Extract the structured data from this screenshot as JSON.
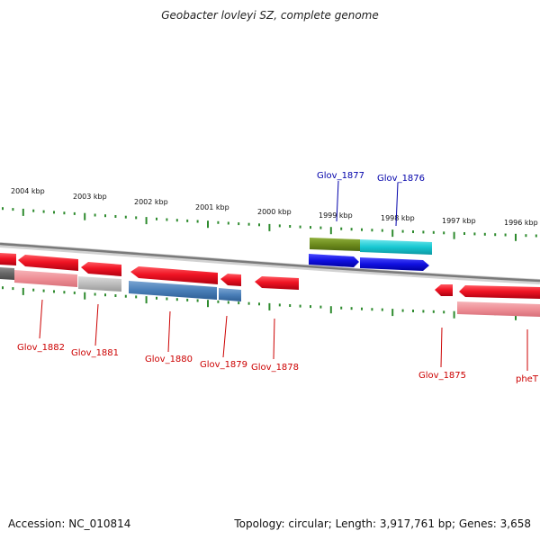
{
  "title": "Geobacter lovleyi SZ, complete genome",
  "footer": {
    "accession": "Accession: NC_010814",
    "topology": "Topology: circular; Length: 3,917,761 bp; Genes: 3,658"
  },
  "colors": {
    "tick_green": "#2e8b2e",
    "backbone": "#8a8a8a",
    "gene_red": "#e8101e",
    "gene_pink": "#ee8f96",
    "gene_grey": "#b8b8b8",
    "gene_steelblue": "#4a7fb8",
    "gene_blue": "#1010e0",
    "gene_olive": "#6e8c1e",
    "gene_cyan": "#18c8d2",
    "label_red": "#cc0000",
    "label_blue": "#0000aa"
  },
  "scale_labels": [
    "2004 kbp",
    "2003 kbp",
    "2002 kbp",
    "2001 kbp",
    "2000 kbp",
    "1999 kbp",
    "1998 kbp",
    "1997 kbp",
    "1996 kbp"
  ],
  "genes_bottom": [
    "Glov_1882",
    "Glov_1881",
    "Glov_1880",
    "Glov_1879",
    "Glov_1878",
    "Glov_1875",
    "pheT"
  ],
  "genes_top": [
    "Glov_1877",
    "Glov_1876"
  ]
}
